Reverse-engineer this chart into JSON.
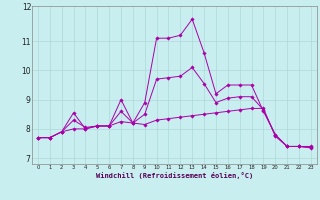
{
  "title": "",
  "xlabel": "Windchill (Refroidissement éolien,°C)",
  "ylabel": "",
  "bg_color": "#c8eef0",
  "grid_color": "#b0d8d8",
  "line_color": "#aa00aa",
  "xlim": [
    -0.5,
    23.5
  ],
  "ylim": [
    6.8,
    12.2
  ],
  "yticks": [
    7,
    8,
    9,
    10,
    11
  ],
  "xticks": [
    0,
    1,
    2,
    3,
    4,
    5,
    6,
    7,
    8,
    9,
    10,
    11,
    12,
    13,
    14,
    15,
    16,
    17,
    18,
    19,
    20,
    21,
    22,
    23
  ],
  "series1": [
    [
      0,
      7.7
    ],
    [
      1,
      7.7
    ],
    [
      2,
      7.9
    ],
    [
      3,
      8.55
    ],
    [
      4,
      8.0
    ],
    [
      5,
      8.1
    ],
    [
      6,
      8.1
    ],
    [
      7,
      9.0
    ],
    [
      8,
      8.2
    ],
    [
      9,
      8.9
    ],
    [
      10,
      11.1
    ],
    [
      11,
      11.1
    ],
    [
      12,
      11.2
    ],
    [
      13,
      11.75
    ],
    [
      14,
      10.6
    ],
    [
      15,
      9.2
    ],
    [
      16,
      9.5
    ],
    [
      17,
      9.5
    ],
    [
      18,
      9.5
    ],
    [
      19,
      8.6
    ],
    [
      20,
      7.8
    ],
    [
      21,
      7.4
    ],
    [
      22,
      7.4
    ],
    [
      23,
      7.4
    ]
  ],
  "series2": [
    [
      0,
      7.7
    ],
    [
      1,
      7.7
    ],
    [
      2,
      7.9
    ],
    [
      3,
      8.0
    ],
    [
      4,
      8.0
    ],
    [
      5,
      8.1
    ],
    [
      6,
      8.1
    ],
    [
      7,
      8.25
    ],
    [
      8,
      8.2
    ],
    [
      9,
      8.15
    ],
    [
      10,
      8.3
    ],
    [
      11,
      8.35
    ],
    [
      12,
      8.4
    ],
    [
      13,
      8.45
    ],
    [
      14,
      8.5
    ],
    [
      15,
      8.55
    ],
    [
      16,
      8.6
    ],
    [
      17,
      8.65
    ],
    [
      18,
      8.7
    ],
    [
      19,
      8.7
    ],
    [
      20,
      7.75
    ],
    [
      21,
      7.4
    ],
    [
      22,
      7.4
    ],
    [
      23,
      7.35
    ]
  ],
  "series3": [
    [
      0,
      7.7
    ],
    [
      1,
      7.7
    ],
    [
      2,
      7.9
    ],
    [
      3,
      8.3
    ],
    [
      4,
      8.05
    ],
    [
      5,
      8.1
    ],
    [
      6,
      8.1
    ],
    [
      7,
      8.6
    ],
    [
      8,
      8.2
    ],
    [
      9,
      8.5
    ],
    [
      10,
      9.7
    ],
    [
      11,
      9.75
    ],
    [
      12,
      9.8
    ],
    [
      13,
      10.1
    ],
    [
      14,
      9.55
    ],
    [
      15,
      8.9
    ],
    [
      16,
      9.05
    ],
    [
      17,
      9.1
    ],
    [
      18,
      9.1
    ],
    [
      19,
      8.65
    ],
    [
      20,
      7.8
    ],
    [
      21,
      7.4
    ],
    [
      22,
      7.4
    ],
    [
      23,
      7.37
    ]
  ]
}
